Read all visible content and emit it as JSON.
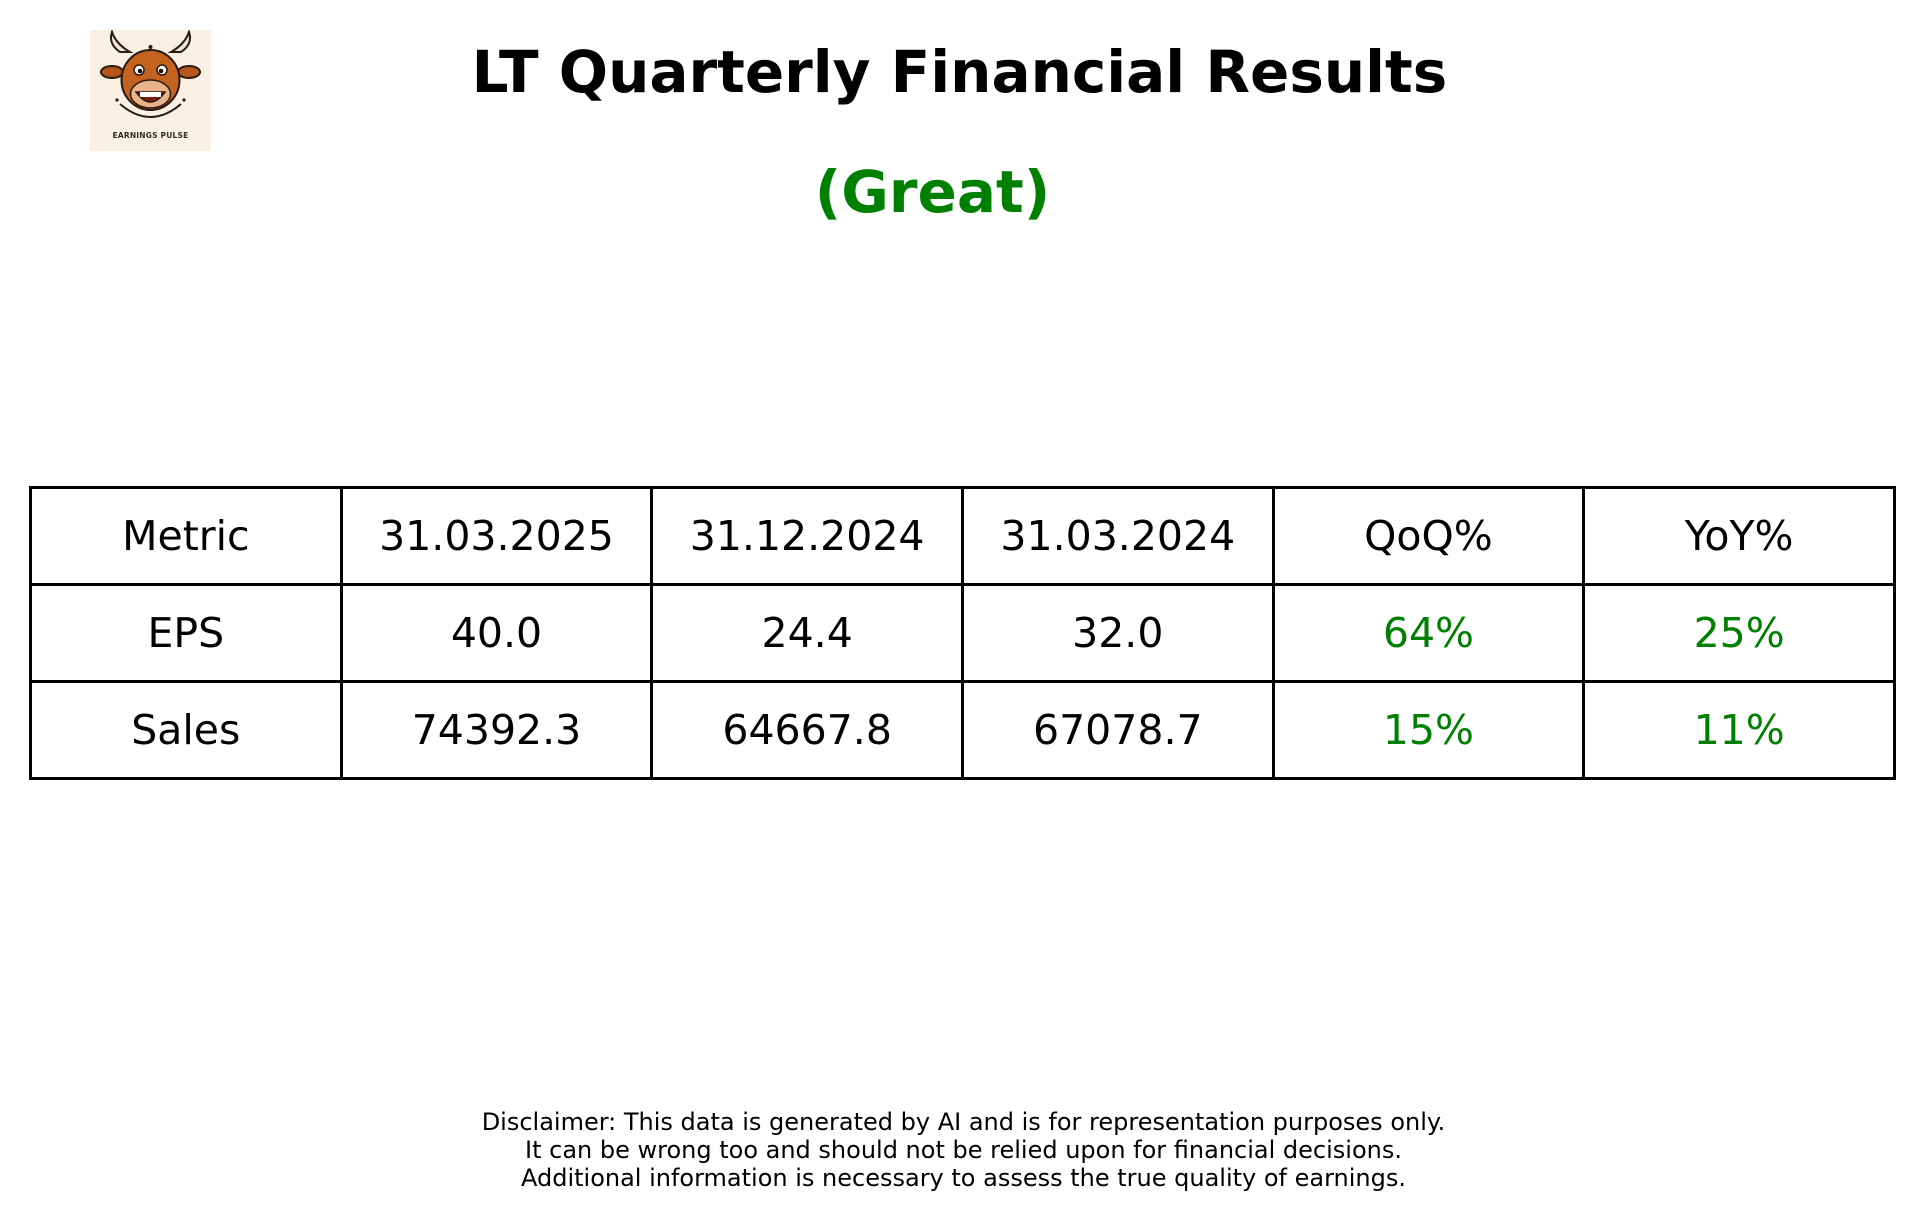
{
  "logo": {
    "text": "EARNINGS PULSE",
    "icon": "bull-mascot-icon"
  },
  "title": "LT Quarterly Financial Results",
  "rating": {
    "text": "(Great)",
    "color": "#008000"
  },
  "colors": {
    "positive": "#008000",
    "text": "#000000",
    "border": "#000000"
  },
  "chart_data": {
    "type": "table",
    "columns": [
      "Metric",
      "31.03.2025",
      "31.12.2024",
      "31.03.2024",
      "QoQ%",
      "YoY%"
    ],
    "rows": [
      [
        "EPS",
        "40.0",
        "24.4",
        "32.0",
        "64%",
        "25%"
      ],
      [
        "Sales",
        "74392.3",
        "64667.8",
        "67078.7",
        "15%",
        "11%"
      ]
    ]
  },
  "disclaimer": [
    "Disclaimer: This data is generated by AI and is for representation purposes only.",
    "It can be wrong too and should not be relied upon for financial decisions.",
    "Additional information is necessary to assess the true quality of earnings."
  ]
}
